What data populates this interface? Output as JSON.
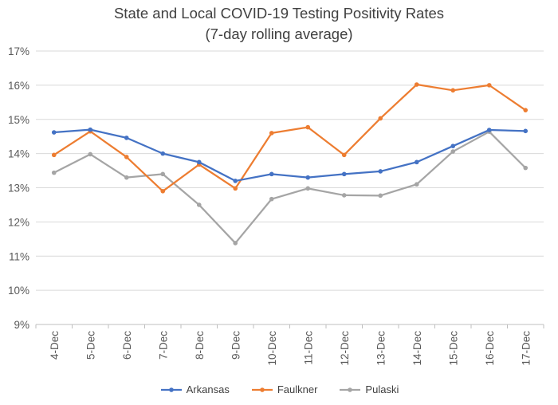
{
  "chart_data": {
    "type": "line",
    "title": "State and Local COVID-19 Testing Positivity Rates",
    "subtitle": "(7-day rolling average)",
    "categories": [
      "4-Dec",
      "5-Dec",
      "6-Dec",
      "7-Dec",
      "8-Dec",
      "9-Dec",
      "10-Dec",
      "11-Dec",
      "12-Dec",
      "13-Dec",
      "14-Dec",
      "15-Dec",
      "16-Dec",
      "17-Dec"
    ],
    "y_ticks": [
      "9%",
      "10%",
      "11%",
      "12%",
      "13%",
      "14%",
      "15%",
      "16%",
      "17%"
    ],
    "ylim": [
      9,
      17
    ],
    "grid": true,
    "legend_position": "bottom",
    "series": [
      {
        "name": "Arkansas",
        "color": "#4472C4",
        "values": [
          14.62,
          14.7,
          14.46,
          14.0,
          13.75,
          13.2,
          13.4,
          13.3,
          13.4,
          13.48,
          13.75,
          14.22,
          14.69,
          14.66
        ]
      },
      {
        "name": "Faulkner",
        "color": "#ED7D31",
        "values": [
          13.96,
          14.65,
          13.9,
          12.9,
          13.68,
          12.98,
          14.6,
          14.77,
          13.96,
          15.03,
          16.02,
          15.85,
          16.0,
          15.27
        ]
      },
      {
        "name": "Pulaski",
        "color": "#A5A5A5",
        "values": [
          13.44,
          13.98,
          13.3,
          13.4,
          12.5,
          11.38,
          12.67,
          12.98,
          12.78,
          12.77,
          13.1,
          14.06,
          14.64,
          13.58
        ]
      }
    ]
  }
}
